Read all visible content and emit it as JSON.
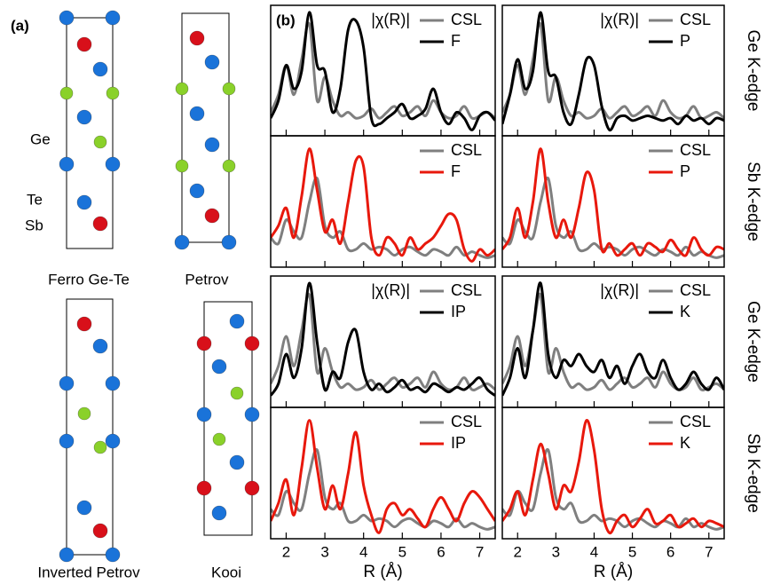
{
  "figure_a": {
    "panel_label": "(a)",
    "atom_labels": [
      "Ge",
      "Te",
      "Sb"
    ],
    "structures": [
      "Ferro Ge-Te",
      "Petrov",
      "Inverted Petrov",
      "Kooi"
    ]
  },
  "chart_data": [
    {
      "type": "line",
      "panel_label": "(b)",
      "annotation": "|χ(R)|",
      "legend": "upper right",
      "xlim": [
        1.6,
        7.4
      ],
      "ylim": [
        -0.05,
        1.06
      ],
      "xticks": [
        2,
        3,
        4,
        5,
        6,
        7
      ],
      "show_xtick_labels": false,
      "x": [
        1.6,
        1.8,
        2.0,
        2.2,
        2.4,
        2.6,
        2.8,
        3.0,
        3.2,
        3.4,
        3.6,
        3.8,
        4.0,
        4.2,
        4.4,
        4.6,
        4.8,
        5.0,
        5.2,
        5.4,
        5.6,
        5.8,
        6.0,
        6.2,
        6.4,
        6.6,
        6.8,
        7.0,
        7.2,
        7.4
      ],
      "series": [
        {
          "name": "CSL",
          "color": "#7f7f7f",
          "values": [
            0.15,
            0.3,
            0.55,
            0.3,
            0.6,
            0.9,
            0.25,
            0.45,
            0.25,
            0.12,
            0.15,
            0.1,
            0.12,
            0.18,
            0.1,
            0.15,
            0.2,
            0.12,
            0.15,
            0.2,
            0.12,
            0.25,
            0.15,
            0.1,
            0.12,
            0.2,
            0.1,
            0.12,
            0.15,
            0.1
          ]
        },
        {
          "name": "F",
          "color": "#000000",
          "values": [
            0.1,
            0.25,
            0.55,
            0.35,
            0.5,
            1.0,
            0.55,
            0.5,
            0.15,
            0.35,
            0.85,
            0.93,
            0.7,
            0.1,
            0.05,
            0.1,
            0.15,
            0.22,
            0.1,
            0.12,
            0.18,
            0.35,
            0.15,
            0.05,
            0.15,
            0.1,
            0.0,
            0.12,
            0.15,
            0.08
          ]
        }
      ]
    },
    {
      "type": "line",
      "annotation": "|χ(R)|",
      "side_label": "Ge K-edge",
      "legend": "upper right",
      "xlim": [
        1.6,
        7.4
      ],
      "ylim": [
        -0.05,
        1.06
      ],
      "xticks": [
        2,
        3,
        4,
        5,
        6,
        7
      ],
      "show_xtick_labels": false,
      "x": [
        1.6,
        1.8,
        2.0,
        2.2,
        2.4,
        2.6,
        2.8,
        3.0,
        3.2,
        3.4,
        3.6,
        3.8,
        4.0,
        4.2,
        4.4,
        4.6,
        4.8,
        5.0,
        5.2,
        5.4,
        5.6,
        5.8,
        6.0,
        6.2,
        6.4,
        6.6,
        6.8,
        7.0,
        7.2,
        7.4
      ],
      "series": [
        {
          "name": "CSL",
          "color": "#7f7f7f",
          "values": [
            0.15,
            0.3,
            0.55,
            0.3,
            0.6,
            0.9,
            0.25,
            0.45,
            0.25,
            0.12,
            0.15,
            0.1,
            0.12,
            0.18,
            0.1,
            0.15,
            0.2,
            0.12,
            0.15,
            0.2,
            0.12,
            0.25,
            0.15,
            0.1,
            0.12,
            0.2,
            0.1,
            0.12,
            0.15,
            0.1
          ]
        },
        {
          "name": "P",
          "color": "#000000",
          "values": [
            0.05,
            0.3,
            0.6,
            0.35,
            0.5,
            1.0,
            0.5,
            0.45,
            0.15,
            0.05,
            0.3,
            0.6,
            0.55,
            0.2,
            0.0,
            0.1,
            0.12,
            0.08,
            0.1,
            0.12,
            0.1,
            0.08,
            0.1,
            0.05,
            0.12,
            0.08,
            0.1,
            0.05,
            0.1,
            0.08
          ]
        }
      ]
    },
    {
      "type": "line",
      "legend": "upper right",
      "xlim": [
        1.6,
        7.4
      ],
      "ylim": [
        -0.05,
        1.06
      ],
      "xticks": [
        2,
        3,
        4,
        5,
        6,
        7
      ],
      "show_xtick_labels": false,
      "x": [
        1.6,
        1.8,
        2.0,
        2.2,
        2.4,
        2.6,
        2.8,
        3.0,
        3.2,
        3.4,
        3.6,
        3.8,
        4.0,
        4.2,
        4.4,
        4.6,
        4.8,
        5.0,
        5.2,
        5.4,
        5.6,
        5.8,
        6.0,
        6.2,
        6.4,
        6.6,
        6.8,
        7.0,
        7.2,
        7.4
      ],
      "series": [
        {
          "name": "CSL",
          "color": "#7f7f7f",
          "values": [
            0.2,
            0.15,
            0.35,
            0.25,
            0.2,
            0.5,
            0.7,
            0.3,
            0.2,
            0.25,
            0.1,
            0.1,
            0.15,
            0.1,
            0.12,
            0.1,
            0.05,
            0.1,
            0.12,
            0.08,
            0.05,
            0.1,
            0.08,
            0.05,
            0.12,
            0.05,
            0.08,
            0.05,
            0.03,
            0.05
          ]
        },
        {
          "name": "F",
          "color": "#e8180c",
          "values": [
            0.2,
            0.3,
            0.45,
            0.2,
            0.55,
            0.95,
            0.6,
            0.25,
            0.35,
            0.15,
            0.5,
            0.85,
            0.8,
            0.2,
            0.05,
            0.2,
            0.15,
            0.05,
            0.2,
            0.1,
            0.15,
            0.2,
            0.3,
            0.4,
            0.35,
            0.1,
            0.0,
            0.1,
            0.05,
            0.1
          ]
        }
      ]
    },
    {
      "type": "line",
      "side_label": "Sb K-edge",
      "legend": "upper right",
      "xlim": [
        1.6,
        7.4
      ],
      "ylim": [
        -0.05,
        1.06
      ],
      "xticks": [
        2,
        3,
        4,
        5,
        6,
        7
      ],
      "show_xtick_labels": false,
      "x": [
        1.6,
        1.8,
        2.0,
        2.2,
        2.4,
        2.6,
        2.8,
        3.0,
        3.2,
        3.4,
        3.6,
        3.8,
        4.0,
        4.2,
        4.4,
        4.6,
        4.8,
        5.0,
        5.2,
        5.4,
        5.6,
        5.8,
        6.0,
        6.2,
        6.4,
        6.6,
        6.8,
        7.0,
        7.2,
        7.4
      ],
      "series": [
        {
          "name": "CSL",
          "color": "#7f7f7f",
          "values": [
            0.2,
            0.15,
            0.35,
            0.25,
            0.2,
            0.5,
            0.7,
            0.3,
            0.2,
            0.25,
            0.1,
            0.1,
            0.15,
            0.1,
            0.12,
            0.1,
            0.05,
            0.1,
            0.12,
            0.08,
            0.05,
            0.1,
            0.08,
            0.05,
            0.12,
            0.05,
            0.08,
            0.05,
            0.03,
            0.05
          ]
        },
        {
          "name": "P",
          "color": "#e8180c",
          "values": [
            0.1,
            0.2,
            0.45,
            0.2,
            0.5,
            0.95,
            0.5,
            0.2,
            0.35,
            0.2,
            0.45,
            0.75,
            0.6,
            0.1,
            0.15,
            0.05,
            0.1,
            0.15,
            0.05,
            0.15,
            0.12,
            0.08,
            0.18,
            0.1,
            0.05,
            0.2,
            0.1,
            0.05,
            0.12,
            0.1
          ]
        }
      ]
    },
    {
      "type": "line",
      "annotation": "|χ(R)|",
      "legend": "upper right",
      "xlim": [
        1.6,
        7.4
      ],
      "ylim": [
        -0.05,
        1.06
      ],
      "xticks": [
        2,
        3,
        4,
        5,
        6,
        7
      ],
      "show_xtick_labels": false,
      "x": [
        1.6,
        1.8,
        2.0,
        2.2,
        2.4,
        2.6,
        2.8,
        3.0,
        3.2,
        3.4,
        3.6,
        3.8,
        4.0,
        4.2,
        4.4,
        4.6,
        4.8,
        5.0,
        5.2,
        5.4,
        5.6,
        5.8,
        6.0,
        6.2,
        6.4,
        6.6,
        6.8,
        7.0,
        7.2,
        7.4
      ],
      "series": [
        {
          "name": "CSL",
          "color": "#7f7f7f",
          "values": [
            0.15,
            0.3,
            0.55,
            0.3,
            0.6,
            0.9,
            0.25,
            0.45,
            0.25,
            0.12,
            0.15,
            0.1,
            0.12,
            0.18,
            0.1,
            0.15,
            0.2,
            0.12,
            0.15,
            0.2,
            0.12,
            0.25,
            0.15,
            0.1,
            0.12,
            0.2,
            0.1,
            0.12,
            0.15,
            0.1
          ]
        },
        {
          "name": "IP",
          "color": "#000000",
          "values": [
            0.05,
            0.15,
            0.4,
            0.2,
            0.45,
            1.0,
            0.5,
            0.1,
            0.25,
            0.2,
            0.5,
            0.6,
            0.25,
            0.1,
            0.15,
            0.08,
            0.12,
            0.18,
            0.1,
            0.12,
            0.08,
            0.15,
            0.12,
            0.08,
            0.12,
            0.1,
            0.15,
            0.2,
            0.1,
            0.05
          ]
        }
      ]
    },
    {
      "type": "line",
      "annotation": "|χ(R)|",
      "side_label": "Ge K-edge",
      "legend": "upper right",
      "xlim": [
        1.6,
        7.4
      ],
      "ylim": [
        -0.05,
        1.06
      ],
      "xticks": [
        2,
        3,
        4,
        5,
        6,
        7
      ],
      "show_xtick_labels": false,
      "x": [
        1.6,
        1.8,
        2.0,
        2.2,
        2.4,
        2.6,
        2.8,
        3.0,
        3.2,
        3.4,
        3.6,
        3.8,
        4.0,
        4.2,
        4.4,
        4.6,
        4.8,
        5.0,
        5.2,
        5.4,
        5.6,
        5.8,
        6.0,
        6.2,
        6.4,
        6.6,
        6.8,
        7.0,
        7.2,
        7.4
      ],
      "series": [
        {
          "name": "CSL",
          "color": "#7f7f7f",
          "values": [
            0.15,
            0.3,
            0.55,
            0.3,
            0.6,
            0.9,
            0.25,
            0.45,
            0.25,
            0.12,
            0.15,
            0.1,
            0.12,
            0.18,
            0.1,
            0.15,
            0.2,
            0.12,
            0.15,
            0.2,
            0.12,
            0.25,
            0.15,
            0.1,
            0.12,
            0.2,
            0.1,
            0.12,
            0.15,
            0.1
          ]
        },
        {
          "name": "K",
          "color": "#000000",
          "values": [
            0.05,
            0.2,
            0.45,
            0.2,
            0.6,
            1.0,
            0.4,
            0.2,
            0.35,
            0.3,
            0.4,
            0.3,
            0.25,
            0.35,
            0.2,
            0.3,
            0.15,
            0.3,
            0.4,
            0.25,
            0.2,
            0.35,
            0.2,
            0.1,
            0.15,
            0.25,
            0.15,
            0.1,
            0.2,
            0.1
          ]
        }
      ]
    },
    {
      "type": "line",
      "legend": "upper right",
      "xlabel": "R (Å)",
      "xlim": [
        1.6,
        7.4
      ],
      "ylim": [
        -0.05,
        1.06
      ],
      "xticks": [
        2,
        3,
        4,
        5,
        6,
        7
      ],
      "show_xtick_labels": true,
      "x": [
        1.6,
        1.8,
        2.0,
        2.2,
        2.4,
        2.6,
        2.8,
        3.0,
        3.2,
        3.4,
        3.6,
        3.8,
        4.0,
        4.2,
        4.4,
        4.6,
        4.8,
        5.0,
        5.2,
        5.4,
        5.6,
        5.8,
        6.0,
        6.2,
        6.4,
        6.6,
        6.8,
        7.0,
        7.2,
        7.4
      ],
      "series": [
        {
          "name": "CSL",
          "color": "#7f7f7f",
          "values": [
            0.2,
            0.15,
            0.35,
            0.25,
            0.2,
            0.5,
            0.7,
            0.3,
            0.2,
            0.25,
            0.1,
            0.1,
            0.15,
            0.1,
            0.12,
            0.1,
            0.05,
            0.1,
            0.12,
            0.08,
            0.05,
            0.1,
            0.08,
            0.05,
            0.12,
            0.05,
            0.08,
            0.05,
            0.03,
            0.05
          ]
        },
        {
          "name": "IP",
          "color": "#e8180c",
          "values": [
            0.1,
            0.25,
            0.45,
            0.15,
            0.55,
            0.95,
            0.55,
            0.2,
            0.4,
            0.2,
            0.5,
            0.85,
            0.4,
            0.15,
            0.0,
            0.2,
            0.25,
            0.15,
            0.2,
            0.12,
            0.05,
            0.2,
            0.3,
            0.2,
            0.1,
            0.25,
            0.35,
            0.3,
            0.2,
            0.1
          ]
        }
      ]
    },
    {
      "type": "line",
      "side_label": "Sb K-edge",
      "legend": "upper right",
      "xlabel": "R (Å)",
      "xlim": [
        1.6,
        7.4
      ],
      "ylim": [
        -0.05,
        1.06
      ],
      "xticks": [
        2,
        3,
        4,
        5,
        6,
        7
      ],
      "show_xtick_labels": true,
      "x": [
        1.6,
        1.8,
        2.0,
        2.2,
        2.4,
        2.6,
        2.8,
        3.0,
        3.2,
        3.4,
        3.6,
        3.8,
        4.0,
        4.2,
        4.4,
        4.6,
        4.8,
        5.0,
        5.2,
        5.4,
        5.6,
        5.8,
        6.0,
        6.2,
        6.4,
        6.6,
        6.8,
        7.0,
        7.2,
        7.4
      ],
      "series": [
        {
          "name": "CSL",
          "color": "#7f7f7f",
          "values": [
            0.2,
            0.15,
            0.35,
            0.25,
            0.2,
            0.5,
            0.7,
            0.3,
            0.2,
            0.25,
            0.1,
            0.1,
            0.15,
            0.1,
            0.12,
            0.1,
            0.05,
            0.1,
            0.12,
            0.08,
            0.05,
            0.1,
            0.08,
            0.05,
            0.12,
            0.05,
            0.08,
            0.05,
            0.03,
            0.05
          ]
        },
        {
          "name": "K",
          "color": "#e8180c",
          "values": [
            0.1,
            0.2,
            0.35,
            0.15,
            0.45,
            0.75,
            0.5,
            0.2,
            0.4,
            0.35,
            0.6,
            0.95,
            0.7,
            0.2,
            0.0,
            0.1,
            0.15,
            0.05,
            0.12,
            0.2,
            0.08,
            0.1,
            0.15,
            0.05,
            0.08,
            0.12,
            0.05,
            0.1,
            0.08,
            0.05
          ]
        }
      ]
    }
  ]
}
